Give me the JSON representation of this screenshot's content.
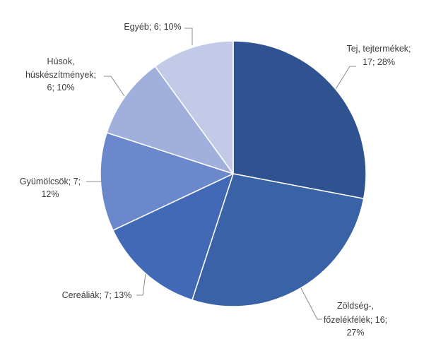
{
  "chart_data": {
    "type": "pie",
    "title": "",
    "legend": "none",
    "units_note": "labels show: category; value; percent",
    "categories": [
      "Tej, tejtermékek",
      "Zöldség-, főzelékfélék",
      "Cereáliák",
      "Gyümölcsök",
      "Húsok, húskészítmények",
      "Egyéb"
    ],
    "values": [
      17,
      16,
      7,
      7,
      6,
      6
    ],
    "percents": [
      28,
      27,
      13,
      12,
      10,
      10
    ],
    "start_angle_deg": 0,
    "direction": "clockwise",
    "colors": [
      "#2F5291",
      "#3A62A6",
      "#4169B5",
      "#6C88CC",
      "#A0AFDC",
      "#C2CAE7"
    ],
    "slice_border_color": "#FFFFFF",
    "leader_line_color": "#8C8C8C",
    "label_text_color": "#3B3B3B",
    "slices": [
      {
        "key": "tej-tejtermekek",
        "name": "Tej, tejtermékek",
        "value": 17,
        "percent": 28,
        "color": "#2F5291",
        "label_lines": [
          "Tej, tejtermékek;",
          "17; 28%"
        ]
      },
      {
        "key": "zoldseg-fozelekfelek",
        "name": "Zöldség-, főzelékfélék",
        "value": 16,
        "percent": 27,
        "color": "#3A62A6",
        "label_lines": [
          "Zöldség-,",
          "főzelékfélék; 16;",
          "27%"
        ]
      },
      {
        "key": "cerealiak",
        "name": "Cereáliák",
        "value": 7,
        "percent": 13,
        "color": "#4169B5",
        "label_lines": [
          "Cereáliák; 7; 13%"
        ]
      },
      {
        "key": "gyumolcsok",
        "name": "Gyümölcsök",
        "value": 7,
        "percent": 12,
        "color": "#6C88CC",
        "label_lines": [
          "Gyümölcsök; 7;",
          "12%"
        ]
      },
      {
        "key": "husok-huskeszitmenyek",
        "name": "Húsok, húskészítmények",
        "value": 6,
        "percent": 10,
        "color": "#A0AFDC",
        "label_lines": [
          "Húsok,",
          "húskészítmények;",
          "6; 10%"
        ]
      },
      {
        "key": "egyeb",
        "name": "Egyéb",
        "value": 6,
        "percent": 10,
        "color": "#C2CAE7",
        "label_lines": [
          "Egyéb; 6; 10%"
        ]
      }
    ]
  }
}
